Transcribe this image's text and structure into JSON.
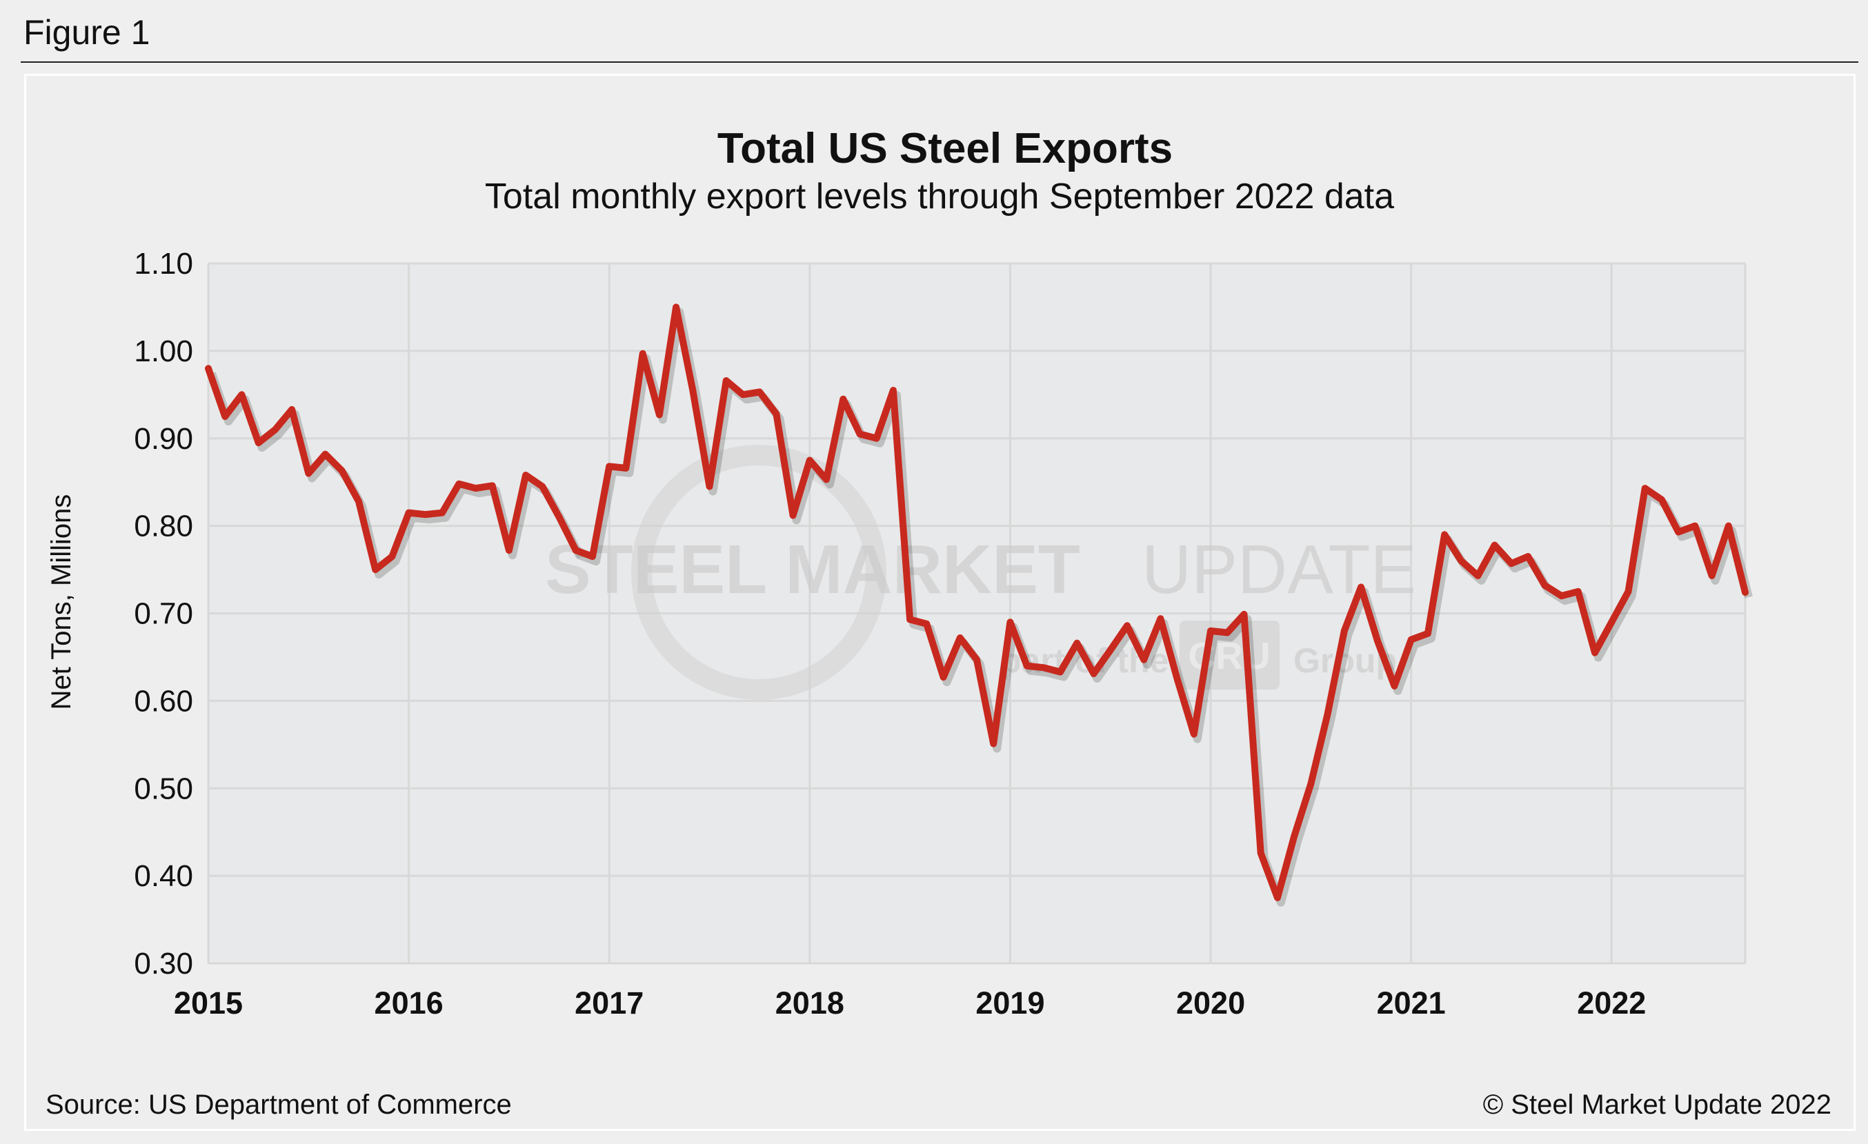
{
  "figure_label": "Figure 1",
  "footer": {
    "source": "Source: US Department of Commerce",
    "copyright": "© Steel Market Update 2022"
  },
  "watermark": {
    "text1": "STEEL MARKET",
    "text2": "UPDATE",
    "text3": "part of the",
    "text4": "CRU",
    "text5": "Group"
  },
  "colors": {
    "line": "#c8291e",
    "plot_bg": "#e8e9ea",
    "grid": "#d8d8d8"
  },
  "chart_data": {
    "type": "line",
    "title": "Total US Steel Exports",
    "subtitle": "Total monthly export levels through September 2022 data",
    "xlabel": "",
    "ylabel": "Net Tons, Millions",
    "ylim": [
      0.3,
      1.1
    ],
    "yticks": [
      "0.30",
      "0.40",
      "0.50",
      "0.60",
      "0.70",
      "0.80",
      "0.90",
      "1.00",
      "1.10"
    ],
    "xticks": [
      "2015",
      "2016",
      "2017",
      "2018",
      "2019",
      "2020",
      "2021",
      "2022"
    ],
    "x_start": "2015-01",
    "x_end": "2022-09",
    "grid": true,
    "legend": "none",
    "series": [
      {
        "values": [
          0.98,
          0.925,
          0.95,
          0.895,
          0.91,
          0.933,
          0.86,
          0.882,
          0.863,
          0.828,
          0.75,
          0.765,
          0.815,
          0.813,
          0.815,
          0.848,
          0.843,
          0.846,
          0.772,
          0.858,
          0.845,
          0.81,
          0.772,
          0.765,
          0.868,
          0.866,
          0.997,
          0.927,
          1.05,
          0.955,
          0.845,
          0.966,
          0.95,
          0.953,
          0.928,
          0.812,
          0.875,
          0.853,
          0.945,
          0.905,
          0.9,
          0.955,
          0.693,
          0.688,
          0.627,
          0.672,
          0.647,
          0.551,
          0.69,
          0.64,
          0.638,
          0.633,
          0.666,
          0.631,
          0.658,
          0.686,
          0.647,
          0.694,
          0.625,
          0.562,
          0.68,
          0.678,
          0.699,
          0.426,
          0.375,
          0.445,
          0.505,
          0.585,
          0.68,
          0.73,
          0.668,
          0.617,
          0.67,
          0.677,
          0.79,
          0.76,
          0.743,
          0.778,
          0.757,
          0.765,
          0.732,
          0.72,
          0.725,
          0.655,
          0.69,
          0.725,
          0.843,
          0.83,
          0.793,
          0.8,
          0.743,
          0.8,
          0.724
        ]
      }
    ]
  }
}
